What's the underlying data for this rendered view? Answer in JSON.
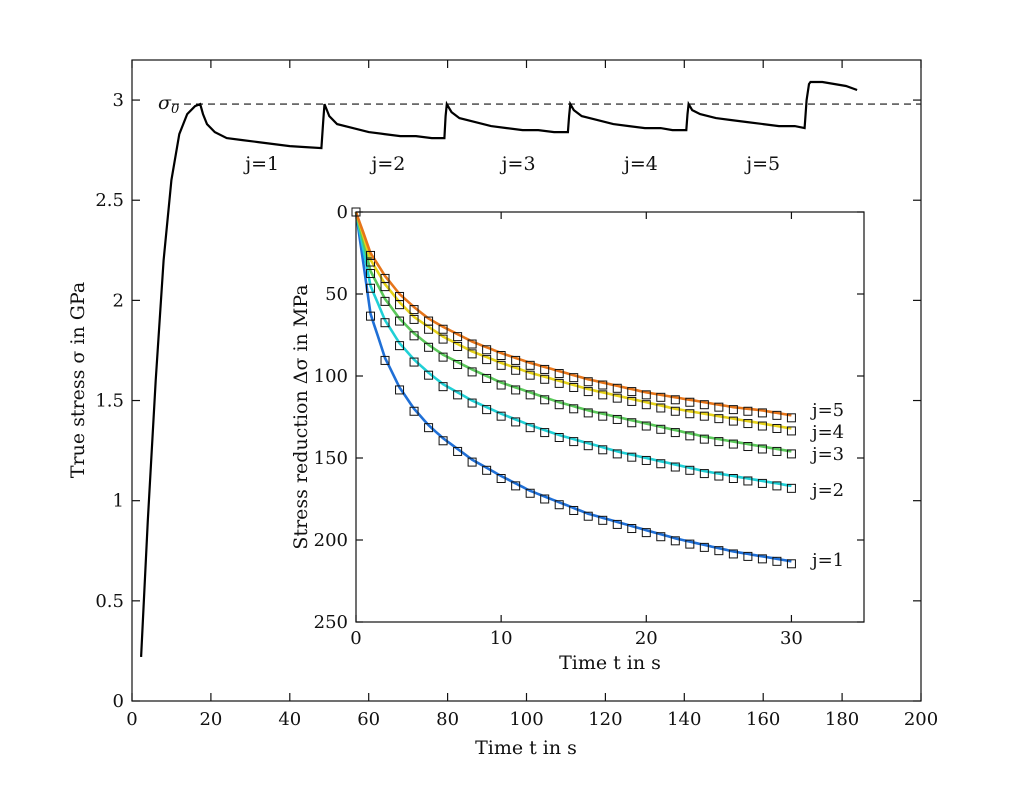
{
  "chart_data": [
    {
      "type": "line",
      "xlabel": "Time t in s",
      "ylabel": "True stress σ in GPa",
      "xlim": [
        0,
        200
      ],
      "ylim": [
        0,
        3.2
      ],
      "xticks": [
        "0",
        "20",
        "40",
        "60",
        "80",
        "100",
        "120",
        "140",
        "160",
        "180",
        "200"
      ],
      "yticks": [
        "0",
        "0.5",
        "1",
        "1.5",
        "2",
        "2.5",
        "3"
      ],
      "reference_line": {
        "label": "σ0",
        "value": 2.98,
        "style": "dashed"
      },
      "segment_labels": [
        "j=1",
        "j=2",
        "j=3",
        "j=4",
        "j=5"
      ],
      "series": [
        {
          "x": [
            2.3,
            4,
            6,
            8,
            10,
            12,
            14,
            16,
            17.3,
            18,
            19,
            21,
            24,
            28,
            32,
            36,
            40,
            44,
            48,
            48.5,
            48.8,
            50,
            52,
            56,
            60,
            64,
            68,
            72,
            76,
            79.2,
            79.5,
            79.8,
            81,
            83,
            87,
            91,
            95,
            99,
            103,
            107,
            110.5,
            110.8,
            111.1,
            112,
            114,
            118,
            122,
            126,
            130,
            134,
            137,
            140.5,
            140.8,
            141.1,
            142,
            144,
            148,
            152,
            156,
            160,
            164,
            168,
            170.5,
            171,
            171.6,
            172,
            175,
            178,
            181,
            183.8
          ],
          "y": [
            0.22,
            0.9,
            1.6,
            2.2,
            2.6,
            2.83,
            2.93,
            2.97,
            2.98,
            2.93,
            2.88,
            2.84,
            2.81,
            2.8,
            2.79,
            2.78,
            2.77,
            2.765,
            2.76,
            2.9,
            2.98,
            2.92,
            2.88,
            2.86,
            2.84,
            2.83,
            2.82,
            2.82,
            2.81,
            2.81,
            2.92,
            2.98,
            2.94,
            2.91,
            2.89,
            2.87,
            2.86,
            2.85,
            2.85,
            2.84,
            2.84,
            2.92,
            2.98,
            2.95,
            2.92,
            2.9,
            2.88,
            2.87,
            2.86,
            2.86,
            2.85,
            2.85,
            2.93,
            2.98,
            2.95,
            2.93,
            2.91,
            2.9,
            2.89,
            2.88,
            2.87,
            2.87,
            2.86,
            3.0,
            3.08,
            3.09,
            3.09,
            3.08,
            3.07,
            3.05
          ]
        }
      ]
    },
    {
      "type": "line",
      "xlabel": "Time t in s",
      "ylabel": "Stress reduction Δσ in MPa",
      "xlim": [
        0,
        35
      ],
      "ylim": [
        250,
        0
      ],
      "y_reversed": true,
      "xticks": [
        "0",
        "10",
        "20",
        "30"
      ],
      "yticks": [
        "0",
        "50",
        "100",
        "150",
        "200",
        "250"
      ],
      "series": [
        {
          "name": "j=1",
          "color": "#1f6fd6",
          "x": [
            0,
            1,
            2,
            3,
            4,
            5,
            6,
            8,
            10,
            12,
            14,
            16,
            18,
            20,
            22,
            24,
            26,
            28,
            30
          ],
          "values": [
            0,
            62,
            89,
            107,
            120,
            130,
            138,
            151,
            161,
            170,
            177,
            184,
            189,
            194,
            199,
            203,
            207,
            210,
            213
          ]
        },
        {
          "name": "j=2",
          "color": "#20d0d6",
          "x": [
            0,
            1,
            2,
            3,
            4,
            5,
            6,
            8,
            10,
            12,
            14,
            16,
            18,
            20,
            22,
            24,
            26,
            28,
            30
          ],
          "values": [
            0,
            45,
            66,
            80,
            90,
            98,
            105,
            115,
            123,
            130,
            136,
            141,
            146,
            150,
            154,
            158,
            161,
            164,
            167
          ]
        },
        {
          "name": "j=3",
          "color": "#5ac85a",
          "x": [
            0,
            1,
            2,
            3,
            4,
            5,
            6,
            8,
            10,
            12,
            14,
            16,
            18,
            20,
            22,
            24,
            26,
            28,
            30
          ],
          "values": [
            0,
            36,
            53,
            65,
            74,
            81,
            87,
            96,
            104,
            110,
            116,
            121,
            125,
            129,
            133,
            137,
            140,
            143,
            146
          ]
        },
        {
          "name": "j=4",
          "color": "#e6d21a",
          "x": [
            0,
            1,
            2,
            3,
            4,
            5,
            6,
            8,
            10,
            12,
            14,
            16,
            18,
            20,
            22,
            24,
            26,
            28,
            30
          ],
          "values": [
            0,
            29,
            44,
            55,
            64,
            70,
            76,
            85,
            92,
            98,
            103,
            108,
            112,
            116,
            120,
            123,
            126,
            129,
            132
          ]
        },
        {
          "name": "j=5",
          "color": "#e6751a",
          "x": [
            0,
            1,
            2,
            3,
            4,
            5,
            6,
            8,
            10,
            12,
            14,
            16,
            18,
            20,
            22,
            24,
            26,
            28,
            30
          ],
          "values": [
            0,
            25,
            39,
            50,
            58,
            65,
            70,
            79,
            86,
            92,
            97,
            102,
            106,
            110,
            113,
            116,
            119,
            121,
            124
          ]
        }
      ]
    }
  ]
}
